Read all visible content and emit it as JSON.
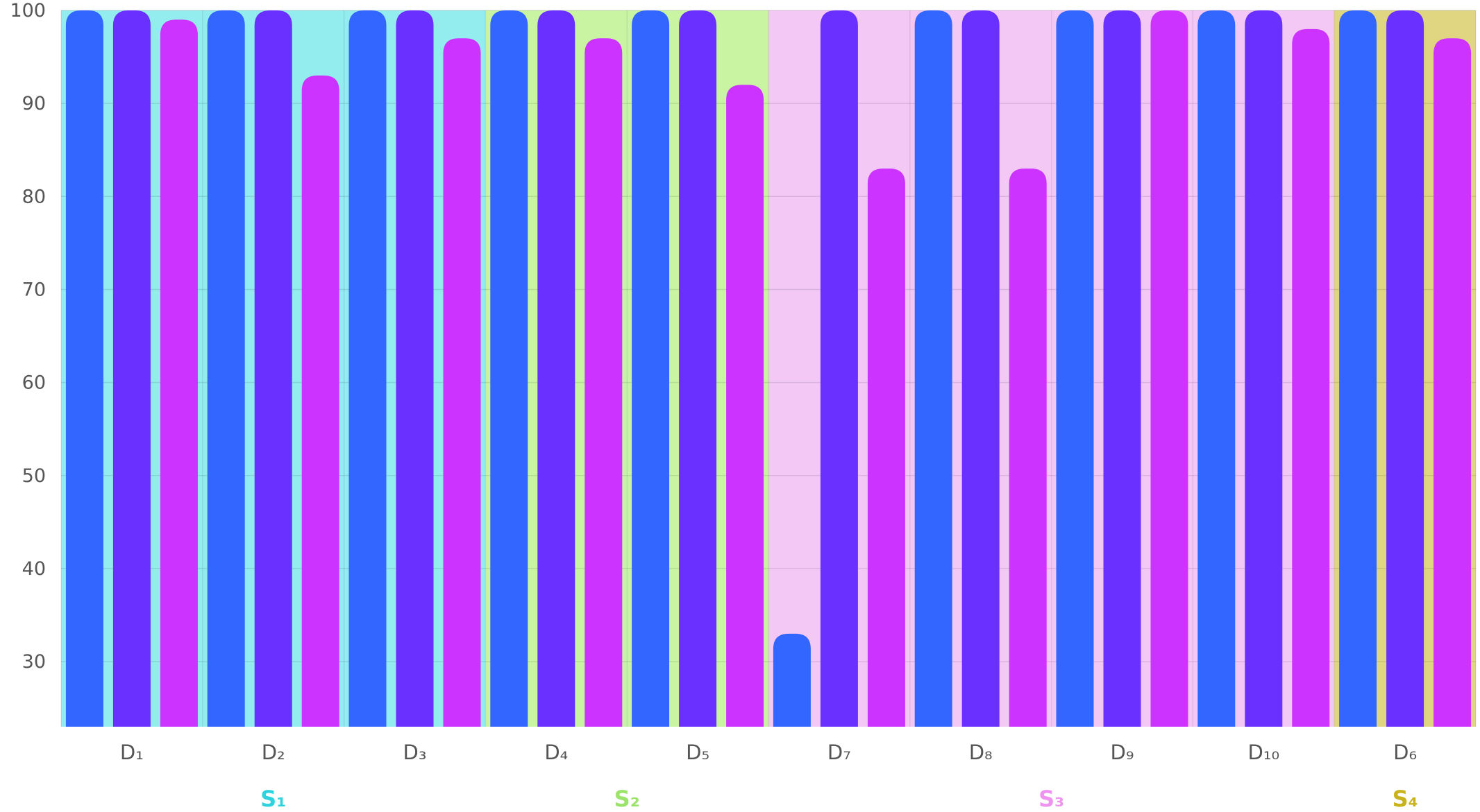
{
  "chart_data": {
    "type": "bar",
    "title": "",
    "xlabel": "",
    "ylabel": "",
    "ylim": [
      23,
      100
    ],
    "yticks": [
      30,
      40,
      50,
      60,
      70,
      80,
      90,
      100
    ],
    "grid": true,
    "categories": [
      "D1",
      "D2",
      "D3",
      "D4",
      "D5",
      "D7",
      "D8",
      "D9",
      "D10",
      "D6"
    ],
    "category_labels": [
      "D₁",
      "D₂",
      "D₃",
      "D₄",
      "D₅",
      "D₇",
      "D₈",
      "D₉",
      "D₁₀",
      "D₆"
    ],
    "series": [
      {
        "color": "#3366ff",
        "values": [
          100,
          100,
          100,
          100,
          100,
          33,
          100,
          100,
          100,
          100
        ]
      },
      {
        "color": "#6a30ff",
        "values": [
          100,
          100,
          100,
          100,
          100,
          100,
          100,
          100,
          100,
          100
        ]
      },
      {
        "color": "#cc33ff",
        "values": [
          99,
          93,
          97,
          97,
          92,
          83,
          83,
          100,
          98,
          97
        ]
      }
    ],
    "groups": [
      {
        "label": "S₁",
        "start": 0,
        "end": 2,
        "band_color": "#93ecee",
        "label_color": "#2fd3dd"
      },
      {
        "label": "S₂",
        "start": 3,
        "end": 4,
        "band_color": "#c9f5a3",
        "label_color": "#9be36a"
      },
      {
        "label": "S₃",
        "start": 5,
        "end": 8,
        "band_color": "#f3c8f5",
        "label_color": "#ee93f0"
      },
      {
        "label": "S₄",
        "start": 9,
        "end": 9,
        "band_color": "#e0d682",
        "label_color": "#c9b31a"
      }
    ]
  }
}
